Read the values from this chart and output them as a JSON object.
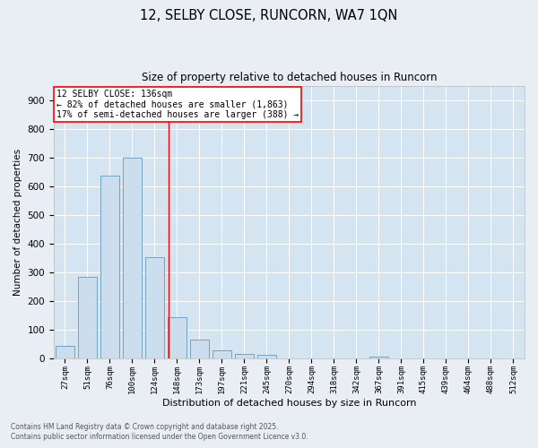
{
  "title": "12, SELBY CLOSE, RUNCORN, WA7 1QN",
  "subtitle": "Size of property relative to detached houses in Runcorn",
  "xlabel": "Distribution of detached houses by size in Runcorn",
  "ylabel": "Number of detached properties",
  "bar_color": "#ccdded",
  "bar_edge_color": "#6699bb",
  "fig_facecolor": "#e8eef4",
  "ax_facecolor": "#d4e4f0",
  "grid_color": "#ffffff",
  "categories": [
    "27sqm",
    "51sqm",
    "76sqm",
    "100sqm",
    "124sqm",
    "148sqm",
    "173sqm",
    "197sqm",
    "221sqm",
    "245sqm",
    "270sqm",
    "294sqm",
    "318sqm",
    "342sqm",
    "367sqm",
    "391sqm",
    "415sqm",
    "439sqm",
    "464sqm",
    "488sqm",
    "512sqm"
  ],
  "values": [
    42,
    283,
    635,
    700,
    352,
    143,
    65,
    28,
    15,
    10,
    0,
    0,
    0,
    0,
    5,
    0,
    0,
    0,
    0,
    0,
    0
  ],
  "ylim": [
    0,
    950
  ],
  "yticks": [
    0,
    100,
    200,
    300,
    400,
    500,
    600,
    700,
    800,
    900
  ],
  "annotation_title": "12 SELBY CLOSE: 136sqm",
  "annotation_line1": "← 82% of detached houses are smaller (1,863)",
  "annotation_line2": "17% of semi-detached houses are larger (388) →",
  "vline_position": 4.62,
  "footnote1": "Contains HM Land Registry data © Crown copyright and database right 2025.",
  "footnote2": "Contains public sector information licensed under the Open Government Licence v3.0."
}
